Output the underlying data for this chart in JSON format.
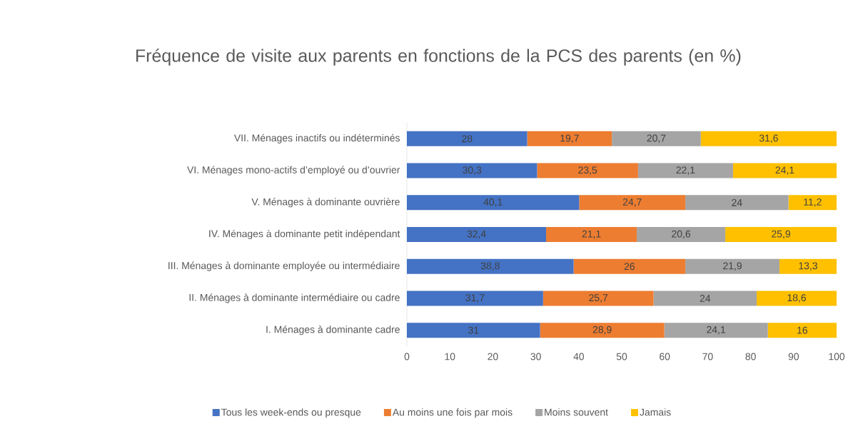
{
  "chart_data": {
    "type": "bar",
    "orientation": "horizontal",
    "stacked": true,
    "title": "Fréquence de visite aux parents en fonctions de la PCS des parents (en %)",
    "categories": [
      "VII. Ménages inactifs ou indéterminés",
      "VI. Ménages mono-actifs d’employé ou d’ouvrier",
      "V. Ménages à dominante ouvrière",
      "IV. Ménages à dominante petit indépendant",
      "III. Ménages à dominante employée ou intermédiaire",
      "II. Ménages à dominante intermédiaire ou cadre",
      "I. Ménages à dominante cadre"
    ],
    "series": [
      {
        "name": "Tous les week-ends ou presque",
        "color": "#4472c4",
        "values": [
          28,
          30.3,
          40.1,
          32.4,
          38.8,
          31.7,
          31
        ],
        "value_labels": [
          "28",
          "30,3",
          "40,1",
          "32,4",
          "38,8",
          "31,7",
          "31"
        ]
      },
      {
        "name": "Au moins une fois par mois",
        "color": "#ed7d31",
        "values": [
          19.7,
          23.5,
          24.7,
          21.1,
          26,
          25.7,
          28.9
        ],
        "value_labels": [
          "19,7",
          "23,5",
          "24,7",
          "21,1",
          "26",
          "25,7",
          "28,9"
        ]
      },
      {
        "name": "Moins souvent",
        "color": "#a5a5a5",
        "values": [
          20.7,
          22.1,
          24,
          20.6,
          21.9,
          24,
          24.1
        ],
        "value_labels": [
          "20,7",
          "22,1",
          "24",
          "20,6",
          "21,9",
          "24",
          "24,1"
        ]
      },
      {
        "name": "Jamais",
        "color": "#ffc000",
        "values": [
          31.6,
          24.1,
          11.2,
          25.9,
          13.3,
          18.6,
          16
        ],
        "value_labels": [
          "31,6",
          "24,1",
          "11,2",
          "25,9",
          "13,3",
          "18,6",
          "16"
        ]
      }
    ],
    "xlim": [
      0,
      100
    ],
    "xticks": [
      0,
      10,
      20,
      30,
      40,
      50,
      60,
      70,
      80,
      90,
      100
    ],
    "legend": "bottom"
  }
}
